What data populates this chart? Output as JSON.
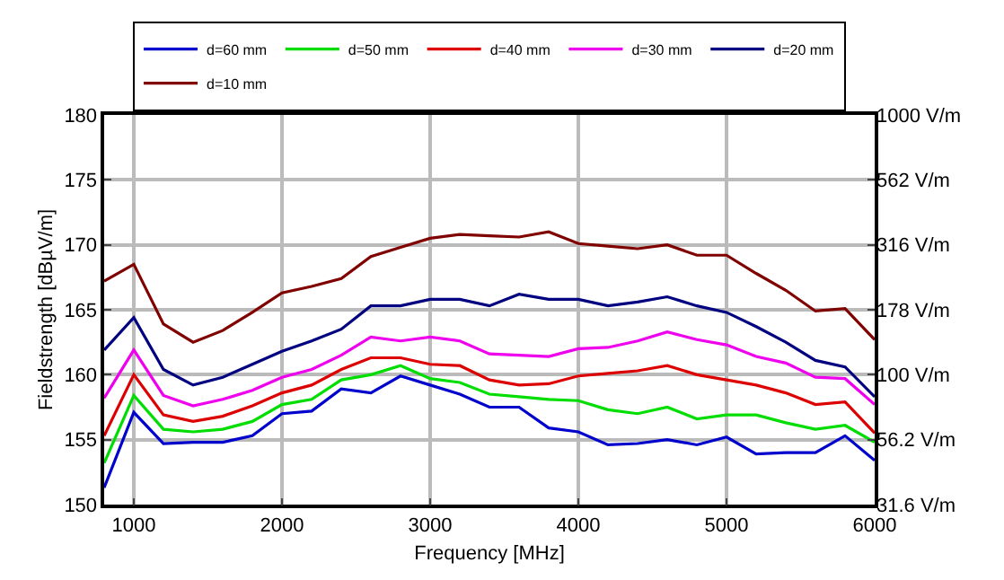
{
  "chart_data": {
    "type": "line",
    "xlabel": "Frequency [MHz]",
    "ylabel": "Fieldstrength [dBµV/m]",
    "x": [
      800,
      1000,
      1200,
      1400,
      1600,
      1800,
      2000,
      2200,
      2400,
      2600,
      2800,
      3000,
      3200,
      3400,
      3600,
      3800,
      4000,
      4200,
      4400,
      4600,
      4800,
      5000,
      5200,
      5400,
      5600,
      5800,
      6000
    ],
    "series": [
      {
        "name": "d=60 mm",
        "color": "#0000cc",
        "values": [
          151.3,
          157.1,
          154.7,
          154.8,
          154.8,
          155.3,
          157,
          157.2,
          158.9,
          158.6,
          159.9,
          159.2,
          158.5,
          157.5,
          157.5,
          155.9,
          155.6,
          154.6,
          154.7,
          155,
          154.6,
          155.2,
          153.9,
          154,
          154,
          155.3,
          153.4
        ]
      },
      {
        "name": "d=50 mm",
        "color": "#00dd00",
        "values": [
          153.2,
          158.4,
          155.8,
          155.6,
          155.8,
          156.4,
          157.7,
          158.1,
          159.6,
          160,
          160.7,
          159.7,
          159.4,
          158.5,
          158.3,
          158.1,
          158,
          157.3,
          157,
          157.5,
          156.6,
          156.9,
          156.9,
          156.3,
          155.8,
          156.1,
          154.8
        ]
      },
      {
        "name": "d=40 mm",
        "color": "#dd0000",
        "values": [
          155.3,
          160,
          156.9,
          156.4,
          156.8,
          157.6,
          158.6,
          159.2,
          160.4,
          161.3,
          161.3,
          160.8,
          160.7,
          159.6,
          159.2,
          159.3,
          159.9,
          160.1,
          160.3,
          160.7,
          160,
          159.6,
          159.2,
          158.6,
          157.7,
          157.9,
          155.5
        ]
      },
      {
        "name": "d=30 mm",
        "color": "#ee00ee",
        "values": [
          158.2,
          161.9,
          158.4,
          157.6,
          158.1,
          158.8,
          159.8,
          160.4,
          161.5,
          162.9,
          162.6,
          162.9,
          162.6,
          161.6,
          161.5,
          161.4,
          162,
          162.1,
          162.6,
          163.3,
          162.7,
          162.3,
          161.4,
          160.9,
          159.8,
          159.7,
          157.7
        ]
      },
      {
        "name": "d=20 mm",
        "color": "#000080",
        "values": [
          161.9,
          164.4,
          160.4,
          159.2,
          159.8,
          160.8,
          161.8,
          162.6,
          163.5,
          165.3,
          165.3,
          165.8,
          165.8,
          165.3,
          166.2,
          165.8,
          165.8,
          165.3,
          165.6,
          166,
          165.3,
          164.8,
          163.7,
          162.5,
          161.1,
          160.6,
          158.3
        ]
      },
      {
        "name": "d=10 mm",
        "color": "#800000",
        "values": [
          167.2,
          168.5,
          163.9,
          162.5,
          163.4,
          164.8,
          166.3,
          166.8,
          167.4,
          169.1,
          169.8,
          170.5,
          170.8,
          170.7,
          170.6,
          171,
          170.1,
          169.9,
          169.7,
          170,
          169.2,
          169.2,
          167.8,
          166.5,
          164.9,
          165.1,
          162.7
        ]
      }
    ],
    "xlim": [
      800,
      6000
    ],
    "xticks": [
      1000,
      2000,
      3000,
      4000,
      5000,
      6000
    ],
    "ylim": [
      150,
      180
    ],
    "yticks": [
      150,
      155,
      160,
      165,
      170,
      175,
      180
    ],
    "y2lim": [
      31.6,
      1000
    ],
    "y2ticks": [
      {
        "value": 1000,
        "label": "1000 V/m"
      },
      {
        "value": 562,
        "label": "562 V/m"
      },
      {
        "value": 316,
        "label": "316 V/m"
      },
      {
        "value": 178,
        "label": "178 V/m"
      },
      {
        "value": 100,
        "label": "100 V/m"
      },
      {
        "value": 56.2,
        "label": "56.2 V/m"
      },
      {
        "value": 31.6,
        "label": "31.6 V/m"
      }
    ],
    "log": "y2",
    "grid": true,
    "legend": "top",
    "line_style": "solid",
    "marker": "none"
  }
}
